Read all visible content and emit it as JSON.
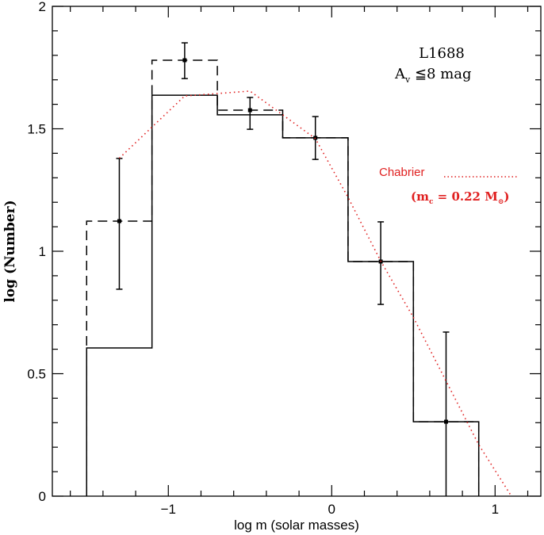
{
  "chart_data": {
    "type": "bar",
    "title": "",
    "xlabel": "log m (solar masses)",
    "ylabel": "log (Number)",
    "xlim": [
      -1.71,
      1.28
    ],
    "ylim": [
      0,
      2
    ],
    "x_major_ticks": [
      -1,
      0,
      1
    ],
    "x_tick_labels": [
      "−1",
      "0",
      "1"
    ],
    "y_major_ticks": [
      0,
      0.5,
      1,
      1.5,
      2
    ],
    "y_tick_labels": [
      "0",
      "0.5",
      "1",
      "1.5",
      "2"
    ],
    "grid": false,
    "bin_edges": [
      -1.5,
      -1.1,
      -0.7,
      -0.3,
      0.1,
      0.5,
      0.9
    ],
    "series": [
      {
        "style": "solid-histogram",
        "values": [
          0.605,
          1.637,
          1.557,
          1.463,
          0.958,
          0.304
        ]
      },
      {
        "style": "dashed-histogram",
        "values": [
          1.123,
          1.78,
          1.576,
          1.463,
          0.958,
          0.304
        ]
      },
      {
        "style": "error-bars",
        "points": [
          {
            "x": -1.3,
            "y": 1.123,
            "lo": 0.845,
            "hi": 1.379
          },
          {
            "x": -0.9,
            "y": 1.78,
            "lo": 1.705,
            "hi": 1.851
          },
          {
            "x": -0.5,
            "y": 1.576,
            "lo": 1.498,
            "hi": 1.628
          },
          {
            "x": -0.1,
            "y": 1.463,
            "lo": 1.375,
            "hi": 1.55
          },
          {
            "x": 0.3,
            "y": 0.958,
            "lo": 0.783,
            "hi": 1.12
          },
          {
            "x": 0.7,
            "y": 0.304,
            "lo": 0.0,
            "hi": 0.67
          }
        ]
      },
      {
        "name": "Chabrier",
        "style": "red-dotted-line",
        "color": "#e02020",
        "x": [
          -1.3,
          -0.9,
          -0.5,
          -0.3,
          -0.1,
          0.1,
          0.3,
          0.5,
          0.7,
          0.9,
          1.1
        ],
        "y": [
          1.38,
          1.634,
          1.654,
          1.557,
          1.46,
          1.22,
          0.96,
          0.73,
          0.47,
          0.21,
          0.0
        ]
      }
    ],
    "annotations": {
      "region": "L1688",
      "extinction_A": "A",
      "extinction_sub": "v",
      "extinction_rest": " ≦8 mag",
      "legend_label": "Chabrier",
      "legend_note_open": "(m",
      "legend_note_sub": "c",
      "legend_note_mid": " = 0.22 M",
      "legend_note_sub2": "⊙",
      "legend_note_close": ")"
    },
    "legend_placement": "right"
  }
}
